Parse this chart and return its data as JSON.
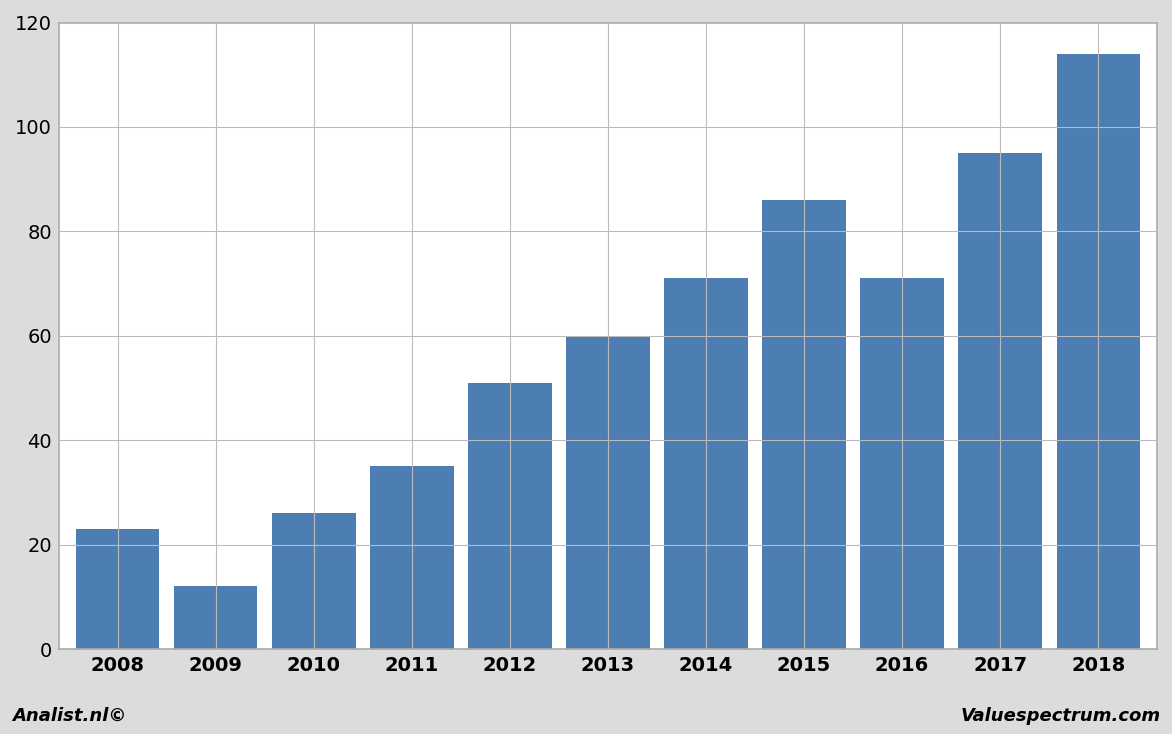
{
  "categories": [
    "2008",
    "2009",
    "2010",
    "2011",
    "2012",
    "2013",
    "2014",
    "2015",
    "2016",
    "2017",
    "2018"
  ],
  "values": [
    23,
    12,
    26,
    35,
    51,
    60,
    71,
    86,
    71,
    95,
    114
  ],
  "bar_color": "#4d7eb3",
  "background_color": "#dcdcdc",
  "plot_background_color": "#ffffff",
  "grid_color": "#bbbbbb",
  "ylim": [
    0,
    120
  ],
  "yticks": [
    0,
    20,
    40,
    60,
    80,
    100,
    120
  ],
  "footer_left": "Analist.nl©",
  "footer_right": "Valuespectrum.com",
  "border_color": "#aaaaaa",
  "bar_width": 0.85
}
